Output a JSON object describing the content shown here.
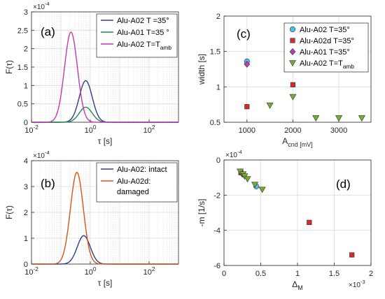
{
  "chart_data": [
    {
      "id": "a",
      "type": "line",
      "panel_label": "(a)",
      "xscale": "log",
      "xlim": [
        0.01,
        1000
      ],
      "ylim": [
        0,
        3
      ],
      "x_ticks": [
        "10^-2",
        "10^0",
        "10^2"
      ],
      "y_ticks": [
        "0",
        "0.5",
        "1",
        "1.5",
        "2",
        "2.5",
        "3"
      ],
      "y_multiplier": "×10^-4",
      "grid": true,
      "legend_position": "top-right",
      "ylabel": "F(τ)",
      "xlabel": "τ [s]",
      "series": [
        {
          "name": "Alu-A02 T =35°",
          "color": "#2E3F8A",
          "peak_x": 0.7,
          "peak_y": 1.13,
          "sigma_log10": 0.22
        },
        {
          "name": "Alu-A01 T=35 °",
          "color": "#1F8A4C",
          "peak_x": 0.7,
          "peak_y": 0.41,
          "sigma_log10": 0.22
        },
        {
          "name": "Alu-A02 T=T_amb",
          "color": "#C239B3",
          "peak_x": 0.22,
          "peak_y": 2.45,
          "sigma_log10": 0.22
        }
      ]
    },
    {
      "id": "b",
      "type": "line",
      "panel_label": "(b)",
      "xscale": "log",
      "xlim": [
        0.01,
        1000
      ],
      "ylim": [
        0,
        4
      ],
      "x_ticks": [
        "10^-2",
        "10^0",
        "10^2"
      ],
      "y_ticks": [
        "0",
        "1",
        "2",
        "3",
        "4"
      ],
      "y_multiplier": "×10^-4",
      "grid": true,
      "legend_position": "top-right",
      "ylabel": "F(τ)",
      "xlabel": "τ [s]",
      "series": [
        {
          "name": "Alu-A02: intact",
          "color": "#2E3F8A",
          "peak_x": 0.6,
          "peak_y": 1.1,
          "sigma_log10": 0.22
        },
        {
          "name_lines": [
            "Alu-A02d:",
            "damaged"
          ],
          "color": "#D95319",
          "peak_x": 0.35,
          "peak_y": 3.55,
          "sigma_log10": 0.22
        }
      ]
    },
    {
      "id": "c",
      "type": "scatter",
      "panel_label": "(c)",
      "xlim": [
        500,
        3700
      ],
      "ylim": [
        0.5,
        2
      ],
      "x_ticks": [
        1000,
        2000,
        3000
      ],
      "y_ticks": [
        "0.5",
        "1",
        "1.5",
        "2"
      ],
      "grid": true,
      "legend_position": "top-right",
      "ylabel": "width [s]",
      "xlabel": "A_cnd [mV]",
      "series": [
        {
          "name": "Alu-A02 T=35°",
          "marker": "circle",
          "color": "#4DBEEE",
          "x": [
            1000
          ],
          "y": [
            1.36
          ]
        },
        {
          "name": "Alu-A02d T=35°",
          "marker": "square",
          "color": "#D12B2B",
          "x": [
            1000,
            2000
          ],
          "y": [
            0.72,
            1.03
          ]
        },
        {
          "name": "Alu-A01 T=35°",
          "marker": "diamond",
          "color": "#C239B3",
          "x": [
            1000
          ],
          "y": [
            1.32
          ]
        },
        {
          "name": "Alu-A02 T=T_amb",
          "marker": "triangle-down",
          "color": "#77AC30",
          "x": [
            1500,
            2000,
            2500,
            3000,
            3500
          ],
          "y": [
            0.74,
            0.86,
            0.56,
            0.56,
            0.56
          ]
        }
      ]
    },
    {
      "id": "d",
      "type": "scatter",
      "panel_label": "(d)",
      "xlim": [
        0,
        2
      ],
      "ylim": [
        -6,
        0
      ],
      "x_ticks": [
        "0",
        "0.5",
        "1",
        "1.5",
        "2"
      ],
      "y_ticks": [
        "-6",
        "-4",
        "-2",
        "0"
      ],
      "x_multiplier": "×10^-3",
      "y_multiplier": "×10^-4",
      "grid": true,
      "ylabel": "-m [1/s]",
      "xlabel": "Δ_M",
      "series": [
        {
          "marker": "circle",
          "color": "#4DBEEE",
          "x": [
            0.44
          ],
          "y": [
            -1.5
          ]
        },
        {
          "marker": "square",
          "color": "#D12B2B",
          "x": [
            0.23,
            1.16,
            1.74
          ],
          "y": [
            -0.72,
            -3.55,
            -5.4
          ]
        },
        {
          "marker": "diamond",
          "color": "#C239B3",
          "x": [
            0.25
          ],
          "y": [
            -0.8
          ]
        },
        {
          "marker": "triangle-down",
          "color": "#77AC30",
          "x": [
            0.22,
            0.26,
            0.28,
            0.32,
            0.42,
            0.52
          ],
          "y": [
            -0.65,
            -0.8,
            -0.92,
            -1.08,
            -1.4,
            -1.68
          ]
        }
      ]
    }
  ]
}
